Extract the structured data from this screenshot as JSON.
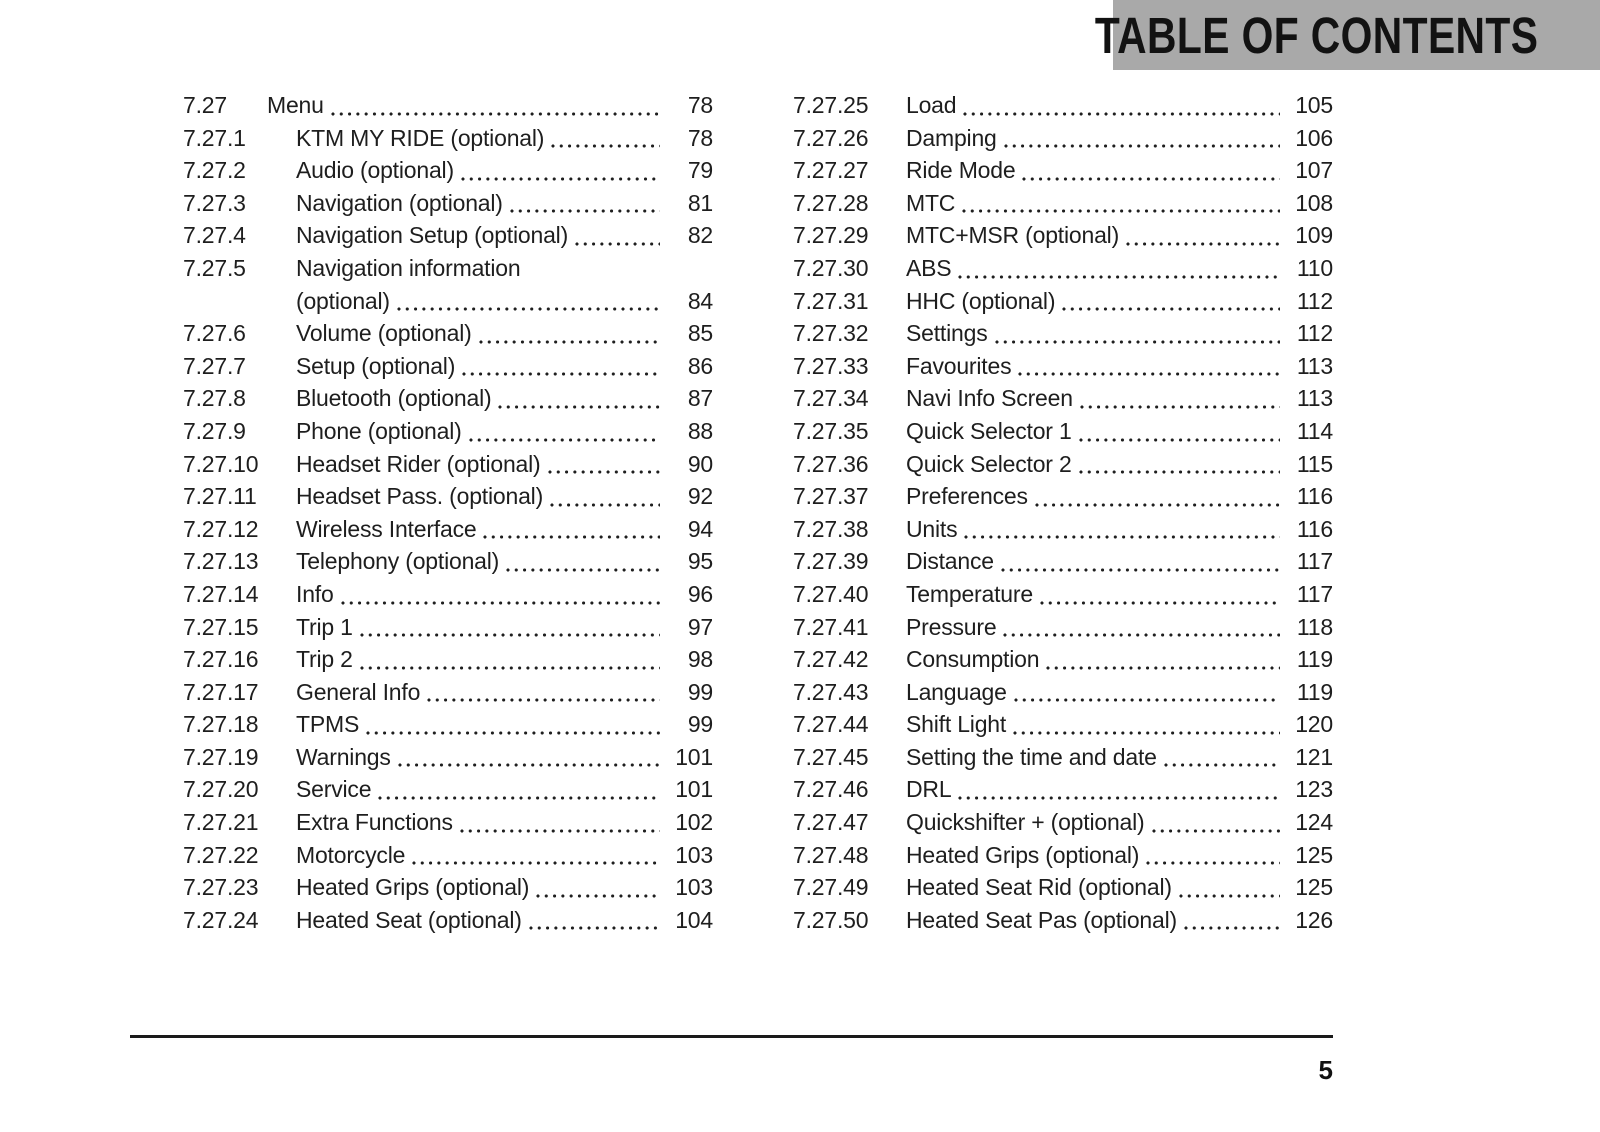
{
  "header": {
    "title": "TABLE OF CONTENTS"
  },
  "footer": {
    "page_number": "5"
  },
  "colors": {
    "header_band": "#a9a9a9",
    "text": "#1e1e1e",
    "rule": "#1a1a1a"
  },
  "columns": [
    {
      "entries": [
        {
          "num": "7.27",
          "title": "Menu",
          "page": "78",
          "level": 1
        },
        {
          "num": "7.27.1",
          "title": "KTM MY RIDE (optional)",
          "page": "78",
          "level": 2
        },
        {
          "num": "7.27.2",
          "title": "Audio (optional)",
          "page": "79",
          "level": 2
        },
        {
          "num": "7.27.3",
          "title": "Navigation (optional)",
          "page": "81",
          "level": 2
        },
        {
          "num": "7.27.4",
          "title": "Navigation Setup (optional)",
          "page": "82",
          "level": 2
        },
        {
          "num": "7.27.5",
          "title": "Navigation information",
          "line2": "(optional)",
          "page": "84",
          "level": 2
        },
        {
          "num": "7.27.6",
          "title": "Volume (optional)",
          "page": "85",
          "level": 2
        },
        {
          "num": "7.27.7",
          "title": "Setup (optional)",
          "page": "86",
          "level": 2
        },
        {
          "num": "7.27.8",
          "title": "Bluetooth (optional)",
          "page": "87",
          "level": 2
        },
        {
          "num": "7.27.9",
          "title": "Phone (optional)",
          "page": "88",
          "level": 2
        },
        {
          "num": "7.27.10",
          "title": "Headset Rider (optional)",
          "page": "90",
          "level": 2
        },
        {
          "num": "7.27.11",
          "title": "Headset Pass. (optional)",
          "page": "92",
          "level": 2
        },
        {
          "num": "7.27.12",
          "title": "Wireless Interface",
          "page": "94",
          "level": 2
        },
        {
          "num": "7.27.13",
          "title": "Telephony (optional)",
          "page": "95",
          "level": 2
        },
        {
          "num": "7.27.14",
          "title": "Info",
          "page": "96",
          "level": 2
        },
        {
          "num": "7.27.15",
          "title": "Trip 1",
          "page": "97",
          "level": 2
        },
        {
          "num": "7.27.16",
          "title": "Trip 2",
          "page": "98",
          "level": 2
        },
        {
          "num": "7.27.17",
          "title": "General Info",
          "page": "99",
          "level": 2
        },
        {
          "num": "7.27.18",
          "title": "TPMS",
          "page": "99",
          "level": 2
        },
        {
          "num": "7.27.19",
          "title": "Warnings",
          "page": "101",
          "level": 2
        },
        {
          "num": "7.27.20",
          "title": "Service",
          "page": "101",
          "level": 2
        },
        {
          "num": "7.27.21",
          "title": "Extra Functions",
          "page": "102",
          "level": 2
        },
        {
          "num": "7.27.22",
          "title": "Motorcycle",
          "page": "103",
          "level": 2
        },
        {
          "num": "7.27.23",
          "title": "Heated Grips (optional)",
          "page": "103",
          "level": 2
        },
        {
          "num": "7.27.24",
          "title": "Heated Seat (optional)",
          "page": "104",
          "level": 2
        }
      ]
    },
    {
      "entries": [
        {
          "num": "7.27.25",
          "title": "Load",
          "page": "105",
          "level": 2
        },
        {
          "num": "7.27.26",
          "title": "Damping",
          "page": "106",
          "level": 2
        },
        {
          "num": "7.27.27",
          "title": "Ride Mode",
          "page": "107",
          "level": 2
        },
        {
          "num": "7.27.28",
          "title": "MTC",
          "page": "108",
          "level": 2
        },
        {
          "num": "7.27.29",
          "title": "MTC+MSR (optional)",
          "page": "109",
          "level": 2
        },
        {
          "num": "7.27.30",
          "title": "ABS",
          "page": "110",
          "level": 2
        },
        {
          "num": "7.27.31",
          "title": "HHC (optional)",
          "page": "112",
          "level": 2
        },
        {
          "num": "7.27.32",
          "title": "Settings",
          "page": "112",
          "level": 2
        },
        {
          "num": "7.27.33",
          "title": "Favourites",
          "page": "113",
          "level": 2
        },
        {
          "num": "7.27.34",
          "title": "Navi Info Screen",
          "page": "113",
          "level": 2
        },
        {
          "num": "7.27.35",
          "title": "Quick Selector 1",
          "page": "114",
          "level": 2
        },
        {
          "num": "7.27.36",
          "title": "Quick Selector 2",
          "page": "115",
          "level": 2
        },
        {
          "num": "7.27.37",
          "title": "Preferences",
          "page": "116",
          "level": 2
        },
        {
          "num": "7.27.38",
          "title": "Units",
          "page": "116",
          "level": 2
        },
        {
          "num": "7.27.39",
          "title": "Distance",
          "page": "117",
          "level": 2
        },
        {
          "num": "7.27.40",
          "title": "Temperature",
          "page": "117",
          "level": 2
        },
        {
          "num": "7.27.41",
          "title": "Pressure",
          "page": "118",
          "level": 2
        },
        {
          "num": "7.27.42",
          "title": "Consumption",
          "page": "119",
          "level": 2
        },
        {
          "num": "7.27.43",
          "title": "Language",
          "page": "119",
          "level": 2
        },
        {
          "num": "7.27.44",
          "title": "Shift Light",
          "page": "120",
          "level": 2
        },
        {
          "num": "7.27.45",
          "title": "Setting the time and date",
          "page": "121",
          "level": 2
        },
        {
          "num": "7.27.46",
          "title": "DRL",
          "page": "123",
          "level": 2
        },
        {
          "num": "7.27.47",
          "title": "Quickshifter + (optional)",
          "page": "124",
          "level": 2
        },
        {
          "num": "7.27.48",
          "title": "Heated Grips (optional)",
          "page": "125",
          "level": 2
        },
        {
          "num": "7.27.49",
          "title": "Heated Seat Rid (optional)",
          "page": "125",
          "level": 2
        },
        {
          "num": "7.27.50",
          "title": "Heated Seat Pas (optional)",
          "page": "126",
          "level": 2
        }
      ]
    }
  ]
}
